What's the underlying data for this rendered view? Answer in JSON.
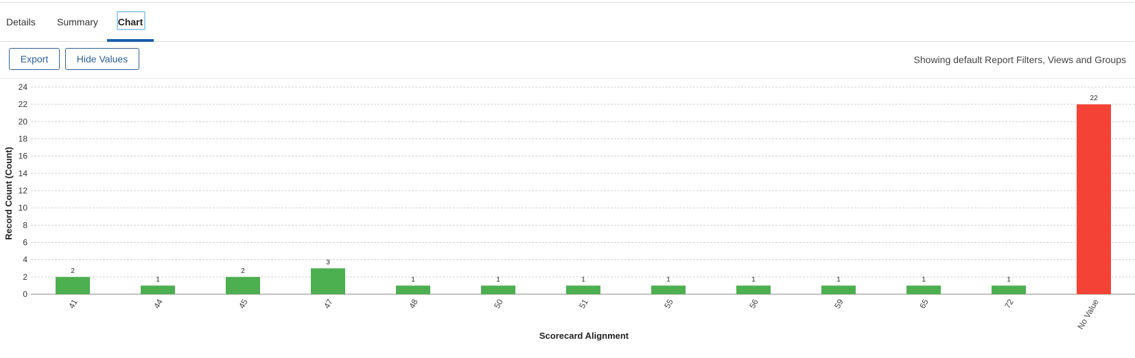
{
  "tabs": {
    "details": "Details",
    "summary": "Summary",
    "chart": "Chart"
  },
  "toolbar": {
    "export_label": "Export",
    "hide_values_label": "Hide Values",
    "filter_note": "Showing default Report Filters, Views and Groups"
  },
  "colors": {
    "accent": "#1a5dab",
    "bar_default": "#4caf50",
    "bar_highlight": "#f44336"
  },
  "chart_data": {
    "type": "bar",
    "title": "",
    "xlabel": "Scorecard Alignment",
    "ylabel": "Record Count (Count)",
    "categories": [
      "41",
      "44",
      "45",
      "47",
      "48",
      "50",
      "51",
      "55",
      "56",
      "59",
      "65",
      "72",
      "No Value"
    ],
    "values": [
      2,
      1,
      2,
      3,
      1,
      1,
      1,
      1,
      1,
      1,
      1,
      1,
      22
    ],
    "bar_colors": [
      "#4caf50",
      "#4caf50",
      "#4caf50",
      "#4caf50",
      "#4caf50",
      "#4caf50",
      "#4caf50",
      "#4caf50",
      "#4caf50",
      "#4caf50",
      "#4caf50",
      "#4caf50",
      "#f44336"
    ],
    "ylim": [
      0,
      24
    ],
    "yticks": [
      0,
      2,
      4,
      6,
      8,
      10,
      12,
      14,
      16,
      18,
      20,
      22,
      24
    ],
    "grid": true,
    "data_labels": true
  }
}
